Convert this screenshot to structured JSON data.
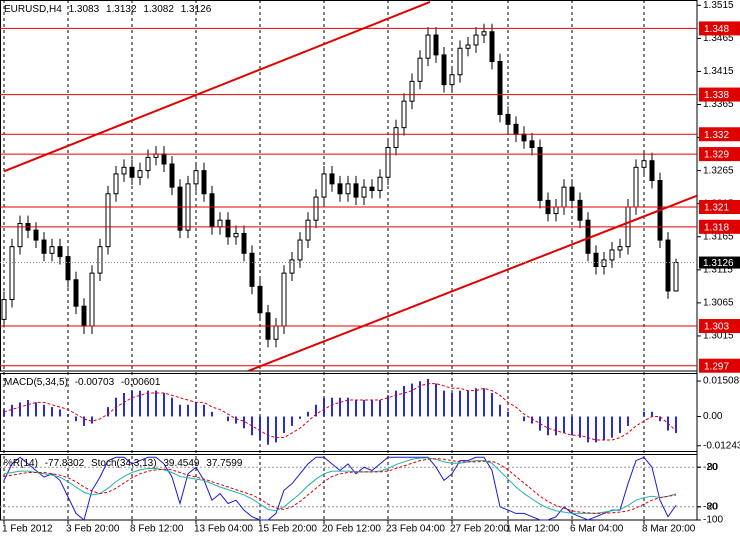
{
  "chart_data": [
    {
      "type": "candlestick",
      "title": "EURUSD,H4",
      "categories": [
        "1 Feb 2012",
        null,
        null,
        null,
        null,
        null,
        null,
        null,
        "3 Feb 20:00",
        null,
        null,
        null,
        null,
        null,
        null,
        null,
        "8 Feb 12:00",
        null,
        null,
        null,
        null,
        null,
        null,
        null,
        "13 Feb 04:00",
        null,
        null,
        null,
        null,
        null,
        null,
        null,
        "15 Feb 20:00",
        null,
        null,
        null,
        null,
        null,
        null,
        null,
        "20 Feb 12:00",
        null,
        null,
        null,
        null,
        null,
        null,
        null,
        "23 Feb 04:00",
        null,
        null,
        null,
        null,
        null,
        null,
        null,
        "27 Feb 20:00",
        null,
        null,
        null,
        null,
        null,
        null,
        "1 Mar 12:00",
        null,
        null,
        null,
        null,
        null,
        null,
        null,
        "6 Mar 04:00",
        null,
        null,
        null,
        null,
        null,
        null,
        null,
        null,
        "8 Mar 20:00",
        null,
        null,
        null,
        null
      ],
      "open": [
        1.304,
        1.307,
        1.315,
        1.3185,
        1.3175,
        1.316,
        1.314,
        1.315,
        1.3135,
        1.31,
        1.306,
        1.303,
        1.311,
        1.315,
        1.323,
        1.326,
        1.327,
        1.3255,
        1.3265,
        1.3285,
        1.329,
        1.3275,
        1.324,
        1.3175,
        1.3245,
        1.3265,
        1.323,
        1.318,
        1.319,
        1.3165,
        1.317,
        1.314,
        1.309,
        1.305,
        1.301,
        1.303,
        1.311,
        1.313,
        1.316,
        1.319,
        1.3225,
        1.326,
        1.3245,
        1.323,
        1.3245,
        1.3225,
        1.324,
        1.3235,
        1.3255,
        1.33,
        1.333,
        1.337,
        1.34,
        1.3435,
        1.347,
        1.344,
        1.3395,
        1.341,
        1.345,
        1.3455,
        1.347,
        1.3475,
        1.343,
        1.335,
        1.3335,
        1.332,
        1.331,
        1.33,
        1.322,
        1.32,
        1.321,
        1.324,
        1.322,
        1.319,
        1.314,
        1.312,
        1.313,
        1.3145,
        1.315,
        1.321,
        1.327,
        1.328,
        1.325,
        1.316,
        1.3083
      ],
      "high": [
        1.3082,
        1.3162,
        1.3197,
        1.3197,
        1.3187,
        1.3172,
        1.3162,
        1.3162,
        1.3147,
        1.3112,
        1.3072,
        1.3122,
        1.3162,
        1.3242,
        1.3272,
        1.3282,
        1.3282,
        1.3277,
        1.3297,
        1.3302,
        1.3302,
        1.3287,
        1.3252,
        1.3257,
        1.3277,
        1.3277,
        1.3242,
        1.3202,
        1.3202,
        1.3182,
        1.3182,
        1.3152,
        1.3102,
        1.3062,
        1.3042,
        1.3122,
        1.3142,
        1.3172,
        1.3202,
        1.3237,
        1.3272,
        1.3272,
        1.3257,
        1.3257,
        1.3257,
        1.3252,
        1.3252,
        1.3267,
        1.3312,
        1.3342,
        1.3382,
        1.3412,
        1.3447,
        1.3482,
        1.3482,
        1.3452,
        1.3422,
        1.3462,
        1.3467,
        1.3482,
        1.3487,
        1.3487,
        1.3442,
        1.3362,
        1.3347,
        1.3332,
        1.3322,
        1.3312,
        1.3232,
        1.3222,
        1.3252,
        1.3252,
        1.3232,
        1.3202,
        1.3152,
        1.3142,
        1.3157,
        1.3162,
        1.3222,
        1.3282,
        1.3292,
        1.3292,
        1.3262,
        1.3172,
        1.3132
      ],
      "low": [
        1.3028,
        1.3058,
        1.3138,
        1.3163,
        1.3148,
        1.3128,
        1.3128,
        1.3123,
        1.3088,
        1.3048,
        1.3018,
        1.3018,
        1.3098,
        1.3138,
        1.3218,
        1.3248,
        1.3243,
        1.3243,
        1.3253,
        1.3273,
        1.3263,
        1.3228,
        1.3163,
        1.3163,
        1.3233,
        1.3218,
        1.3168,
        1.3168,
        1.3153,
        1.3153,
        1.3128,
        1.3078,
        1.3038,
        1.2998,
        1.2998,
        1.3018,
        1.3098,
        1.3118,
        1.3148,
        1.3178,
        1.3213,
        1.3233,
        1.3218,
        1.3218,
        1.3213,
        1.3213,
        1.3223,
        1.3223,
        1.3243,
        1.3288,
        1.3318,
        1.3358,
        1.3388,
        1.3423,
        1.3428,
        1.3383,
        1.3383,
        1.3398,
        1.3438,
        1.3443,
        1.3458,
        1.3418,
        1.3338,
        1.3323,
        1.3308,
        1.3298,
        1.3288,
        1.3208,
        1.3188,
        1.3188,
        1.3198,
        1.3208,
        1.3178,
        1.3128,
        1.3108,
        1.3108,
        1.3118,
        1.3133,
        1.3138,
        1.3198,
        1.3258,
        1.3238,
        1.3148,
        1.3071,
        1.3082
      ],
      "close": [
        1.307,
        1.315,
        1.3185,
        1.3175,
        1.316,
        1.314,
        1.315,
        1.3135,
        1.31,
        1.306,
        1.303,
        1.311,
        1.315,
        1.323,
        1.326,
        1.327,
        1.3255,
        1.3265,
        1.3285,
        1.329,
        1.3275,
        1.324,
        1.3175,
        1.3245,
        1.3265,
        1.323,
        1.318,
        1.319,
        1.3165,
        1.317,
        1.314,
        1.309,
        1.305,
        1.301,
        1.303,
        1.311,
        1.313,
        1.316,
        1.319,
        1.3225,
        1.326,
        1.3245,
        1.323,
        1.3245,
        1.3225,
        1.324,
        1.3235,
        1.3255,
        1.33,
        1.333,
        1.337,
        1.34,
        1.3435,
        1.347,
        1.344,
        1.3395,
        1.341,
        1.345,
        1.3455,
        1.347,
        1.3475,
        1.343,
        1.335,
        1.3335,
        1.332,
        1.331,
        1.33,
        1.322,
        1.32,
        1.321,
        1.324,
        1.322,
        1.319,
        1.314,
        1.312,
        1.313,
        1.3145,
        1.315,
        1.321,
        1.327,
        1.328,
        1.325,
        1.316,
        1.3083,
        1.3126
      ],
      "color": "#000000",
      "up_color": "#ffffff",
      "down_color": "#000000",
      "ylim": [
        1.2962,
        1.3523
      ],
      "yticks": [
        1.3515,
        1.3465,
        1.3415,
        1.3365,
        1.3315,
        1.3265,
        1.3215,
        1.3165,
        1.3115,
        1.3065,
        1.3015
      ],
      "levels": [
        1.348,
        1.338,
        1.332,
        1.329,
        1.321,
        1.318,
        1.303,
        1.297
      ],
      "level_color": "#e00000",
      "trendlines": [
        {
          "x": [
            0,
            53.25
          ],
          "y": [
            1.3264,
            1.352
          ]
        },
        {
          "x": [
            30.5,
            86.6
          ],
          "y": [
            1.2962,
            1.3227
          ]
        }
      ],
      "trendline_color": "#e00000"
    },
    {
      "type": "bar",
      "title": "MACD(5,34,5)",
      "series": [
        {
          "type": "bar",
          "color": "#2b2bd6",
          "values": [
            0.003,
            0.005,
            0.006,
            0.007,
            0.006,
            0.005,
            0.004,
            0.003,
            0.001,
            -0.002,
            -0.004,
            -0.003,
            0.0,
            0.004,
            0.008,
            0.01,
            0.011,
            0.011,
            0.011,
            0.011,
            0.01,
            0.008,
            0.005,
            0.005,
            0.006,
            0.005,
            0.002,
            0.0,
            -0.002,
            -0.003,
            -0.005,
            -0.008,
            -0.01,
            -0.012,
            -0.011,
            -0.007,
            -0.004,
            -0.001,
            0.002,
            0.005,
            0.008,
            0.008,
            0.008,
            0.008,
            0.007,
            0.007,
            0.007,
            0.007,
            0.009,
            0.011,
            0.013,
            0.014,
            0.015,
            0.016,
            0.014,
            0.011,
            0.01,
            0.011,
            0.011,
            0.012,
            0.012,
            0.01,
            0.005,
            0.002,
            0.0,
            -0.002,
            -0.003,
            -0.006,
            -0.008,
            -0.008,
            -0.007,
            -0.008,
            -0.009,
            -0.011,
            -0.011,
            -0.01,
            -0.009,
            -0.007,
            -0.004,
            0.0,
            0.002,
            0.002,
            -0.002,
            -0.006,
            -0.00703
          ]
        },
        {
          "type": "line",
          "color": "#e00000",
          "dashed": true,
          "values": [
            0.002,
            0.003,
            0.004,
            0.005,
            0.006,
            0.006,
            0.005,
            0.004,
            0.003,
            0.001,
            -0.001,
            -0.002,
            -0.001,
            0.001,
            0.004,
            0.006,
            0.008,
            0.009,
            0.01,
            0.01,
            0.01,
            0.009,
            0.008,
            0.007,
            0.006,
            0.006,
            0.004,
            0.003,
            0.001,
            -0.001,
            -0.002,
            -0.004,
            -0.006,
            -0.008,
            -0.009,
            -0.009,
            -0.007,
            -0.005,
            -0.002,
            0.001,
            0.003,
            0.005,
            0.006,
            0.007,
            0.007,
            0.007,
            0.007,
            0.007,
            0.008,
            0.009,
            0.01,
            0.011,
            0.013,
            0.014,
            0.014,
            0.013,
            0.012,
            0.012,
            0.011,
            0.011,
            0.012,
            0.011,
            0.009,
            0.006,
            0.004,
            0.001,
            -0.001,
            -0.003,
            -0.005,
            -0.006,
            -0.007,
            -0.008,
            -0.008,
            -0.009,
            -0.01,
            -0.01,
            -0.01,
            -0.009,
            -0.007,
            -0.004,
            -0.002,
            0.0,
            0.0,
            -0.003,
            -0.00601
          ]
        }
      ],
      "ylim": [
        -0.0151,
        0.0185
      ],
      "yticks": [
        0.01508,
        {
          "value": 0,
          "label": "0.00"
        },
        -0.01243
      ]
    },
    {
      "type": "line",
      "series": [
        {
          "name": "%R(14)",
          "axis": "y2",
          "color": "#1a1ad6",
          "values": [
            -40,
            -15,
            -5,
            -15,
            -25,
            -35,
            -30,
            -40,
            -65,
            -90,
            -100,
            -55,
            -35,
            -10,
            -5,
            -5,
            -15,
            -10,
            -5,
            -5,
            -15,
            -35,
            -75,
            -30,
            -20,
            -40,
            -70,
            -60,
            -75,
            -70,
            -85,
            -95,
            -100,
            -100,
            -90,
            -55,
            -45,
            -30,
            -15,
            -5,
            -5,
            -15,
            -25,
            -15,
            -30,
            -20,
            -25,
            -15,
            -5,
            -5,
            -5,
            -5,
            -5,
            -5,
            -20,
            -40,
            -30,
            -10,
            -10,
            -5,
            -5,
            -25,
            -80,
            -85,
            -90,
            -90,
            -95,
            -100,
            -100,
            -95,
            -80,
            -90,
            -95,
            -100,
            -95,
            -90,
            -85,
            -85,
            -45,
            -10,
            -5,
            -20,
            -70,
            -95,
            -77.8302
          ]
        },
        {
          "name": "Stoch(34,3,13)",
          "color": "#20b2aa",
          "values": [
            70,
            72,
            74,
            74,
            72,
            70,
            68,
            65,
            58,
            50,
            42,
            38,
            40,
            48,
            58,
            66,
            72,
            76,
            78,
            78,
            76,
            72,
            66,
            64,
            62,
            60,
            55,
            50,
            46,
            42,
            38,
            32,
            24,
            16,
            14,
            20,
            30,
            40,
            52,
            62,
            70,
            74,
            74,
            74,
            73,
            73,
            73,
            74,
            78,
            84,
            88,
            92,
            94,
            94,
            92,
            88,
            86,
            86,
            88,
            90,
            90,
            86,
            74,
            62,
            50,
            40,
            32,
            24,
            18,
            14,
            12,
            10,
            10,
            10,
            10,
            12,
            14,
            16,
            22,
            30,
            34,
            36,
            34,
            36,
            39.4549
          ]
        },
        {
          "color": "#e00000",
          "dashed": true,
          "values": [
            66,
            68,
            70,
            72,
            72,
            72,
            70,
            68,
            64,
            58,
            50,
            44,
            40,
            42,
            48,
            56,
            64,
            70,
            74,
            76,
            77,
            76,
            72,
            68,
            65,
            62,
            58,
            54,
            50,
            46,
            42,
            38,
            32,
            24,
            18,
            16,
            20,
            28,
            38,
            48,
            58,
            66,
            70,
            72,
            73,
            73,
            73,
            73,
            74,
            78,
            82,
            86,
            90,
            92,
            93,
            92,
            90,
            88,
            88,
            88,
            89,
            89,
            84,
            76,
            66,
            56,
            46,
            36,
            28,
            22,
            18,
            14,
            12,
            11,
            10,
            10,
            11,
            12,
            14,
            18,
            24,
            30,
            34,
            36,
            37.7599
          ]
        }
      ],
      "ylim": [
        0,
        100
      ],
      "yticks": [
        80,
        20
      ],
      "y2lim": [
        -100,
        0
      ],
      "y2ticks": [
        -20,
        -80,
        -100
      ],
      "grid": true
    }
  ]
}
